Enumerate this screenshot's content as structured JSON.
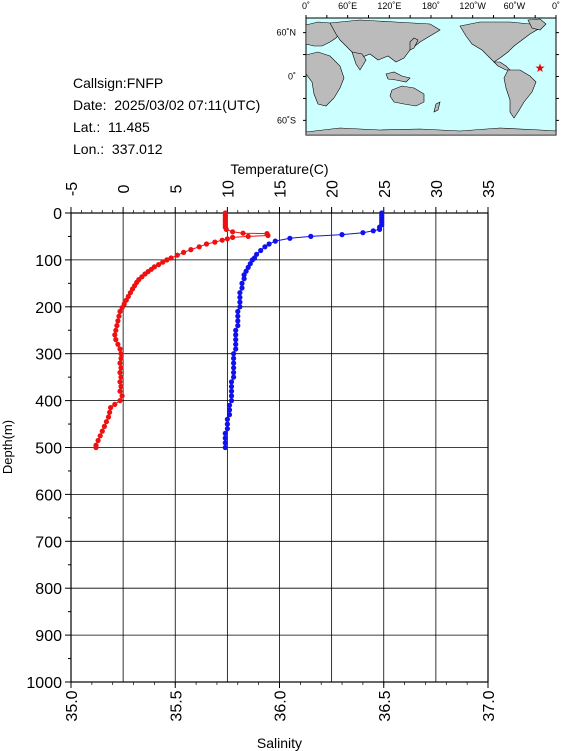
{
  "info": {
    "callsign": "Callsign:FNFP",
    "date": "Date:  2025/03/02 07:11(UTC)",
    "lat": "Lat.:  11.485",
    "lon": "Lon.:  337.012"
  },
  "map": {
    "lon_labels": [
      "0˚",
      "60˚E",
      "120˚E",
      "180˚",
      "120˚W",
      "60˚W",
      "0˚"
    ],
    "lat_labels": [
      "60˚N",
      "0˚",
      "60˚S"
    ],
    "ocean_color": "#ccffff",
    "land_color": "#bbbbbb",
    "marker": {
      "symbol": "★",
      "lon": 337.012,
      "lat": 11.485,
      "color": "#ee0000"
    }
  },
  "chart_data": {
    "type": "scatter",
    "title": "",
    "ylabel": "Depth(m)",
    "ylim": [
      0,
      1000
    ],
    "y_ticks": [
      "0",
      "100",
      "200",
      "300",
      "400",
      "500",
      "600",
      "700",
      "800",
      "900",
      "1000"
    ],
    "y_inverted": true,
    "grid": true,
    "x_top": {
      "label": "Temperature(C)",
      "range": [
        -5,
        35
      ],
      "ticks": [
        "-5",
        "0",
        "5",
        "10",
        "15",
        "20",
        "25",
        "30",
        "35"
      ]
    },
    "x_bottom": {
      "label": "Salinity",
      "range": [
        35.0,
        37.0
      ],
      "ticks": [
        "35.0",
        "35.5",
        "36.0",
        "36.5",
        "37.0"
      ]
    },
    "series": [
      {
        "variable": "temperature",
        "axis": "top",
        "color": "#ee1111",
        "points": [
          [
            9.8,
            0
          ],
          [
            9.8,
            5
          ],
          [
            9.8,
            10
          ],
          [
            9.8,
            15
          ],
          [
            9.8,
            20
          ],
          [
            9.8,
            25
          ],
          [
            9.8,
            30
          ],
          [
            9.9,
            35
          ],
          [
            10.5,
            40
          ],
          [
            11.5,
            43
          ],
          [
            13.8,
            44
          ],
          [
            13.9,
            48
          ],
          [
            12.0,
            50
          ],
          [
            10.5,
            52
          ],
          [
            10.0,
            55
          ],
          [
            9.5,
            58
          ],
          [
            8.8,
            62
          ],
          [
            8.0,
            66
          ],
          [
            7.3,
            72
          ],
          [
            6.5,
            78
          ],
          [
            5.8,
            84
          ],
          [
            5.2,
            90
          ],
          [
            4.6,
            96
          ],
          [
            4.2,
            100
          ],
          [
            3.8,
            105
          ],
          [
            3.4,
            110
          ],
          [
            3.0,
            115
          ],
          [
            2.7,
            120
          ],
          [
            2.4,
            125
          ],
          [
            2.1,
            130
          ],
          [
            1.8,
            136
          ],
          [
            1.5,
            142
          ],
          [
            1.3,
            148
          ],
          [
            1.1,
            155
          ],
          [
            0.9,
            162
          ],
          [
            0.7,
            170
          ],
          [
            0.5,
            178
          ],
          [
            0.3,
            186
          ],
          [
            0.1,
            194
          ],
          [
            -0.1,
            202
          ],
          [
            -0.3,
            210
          ],
          [
            -0.4,
            220
          ],
          [
            -0.5,
            230
          ],
          [
            -0.6,
            240
          ],
          [
            -0.7,
            250
          ],
          [
            -0.8,
            260
          ],
          [
            -0.7,
            270
          ],
          [
            -0.5,
            280
          ],
          [
            -0.3,
            290
          ],
          [
            -0.2,
            300
          ],
          [
            -0.2,
            310
          ],
          [
            -0.3,
            320
          ],
          [
            -0.2,
            330
          ],
          [
            -0.3,
            340
          ],
          [
            -0.2,
            350
          ],
          [
            -0.3,
            360
          ],
          [
            -0.2,
            370
          ],
          [
            -0.3,
            380
          ],
          [
            -0.1,
            390
          ],
          [
            -0.3,
            400
          ],
          [
            -0.8,
            408
          ],
          [
            -1.2,
            415
          ],
          [
            -1.3,
            425
          ],
          [
            -1.4,
            435
          ],
          [
            -1.6,
            445
          ],
          [
            -1.8,
            455
          ],
          [
            -2.0,
            465
          ],
          [
            -2.2,
            475
          ],
          [
            -2.4,
            485
          ],
          [
            -2.6,
            495
          ],
          [
            -2.6,
            500
          ]
        ]
      },
      {
        "variable": "salinity",
        "axis": "bottom",
        "color": "#1111ee",
        "points": [
          [
            36.49,
            0
          ],
          [
            36.49,
            5
          ],
          [
            36.49,
            10
          ],
          [
            36.49,
            15
          ],
          [
            36.49,
            20
          ],
          [
            36.49,
            25
          ],
          [
            36.48,
            30
          ],
          [
            36.48,
            35
          ],
          [
            36.45,
            38
          ],
          [
            36.4,
            42
          ],
          [
            36.3,
            46
          ],
          [
            36.15,
            50
          ],
          [
            36.05,
            54
          ],
          [
            35.98,
            60
          ],
          [
            35.95,
            66
          ],
          [
            35.93,
            72
          ],
          [
            35.91,
            80
          ],
          [
            35.89,
            88
          ],
          [
            35.88,
            96
          ],
          [
            35.87,
            100
          ],
          [
            35.86,
            108
          ],
          [
            35.85,
            116
          ],
          [
            35.84,
            124
          ],
          [
            35.83,
            132
          ],
          [
            35.83,
            140
          ],
          [
            35.82,
            150
          ],
          [
            35.82,
            160
          ],
          [
            35.81,
            170
          ],
          [
            35.81,
            180
          ],
          [
            35.81,
            190
          ],
          [
            35.81,
            200
          ],
          [
            35.8,
            210
          ],
          [
            35.8,
            220
          ],
          [
            35.8,
            230
          ],
          [
            35.8,
            240
          ],
          [
            35.79,
            250
          ],
          [
            35.79,
            260
          ],
          [
            35.79,
            270
          ],
          [
            35.79,
            280
          ],
          [
            35.79,
            290
          ],
          [
            35.78,
            300
          ],
          [
            35.78,
            310
          ],
          [
            35.78,
            320
          ],
          [
            35.78,
            330
          ],
          [
            35.78,
            340
          ],
          [
            35.78,
            350
          ],
          [
            35.77,
            360
          ],
          [
            35.77,
            370
          ],
          [
            35.77,
            380
          ],
          [
            35.77,
            390
          ],
          [
            35.77,
            400
          ],
          [
            35.76,
            410
          ],
          [
            35.76,
            420
          ],
          [
            35.76,
            430
          ],
          [
            35.75,
            440
          ],
          [
            35.75,
            450
          ],
          [
            35.75,
            460
          ],
          [
            35.74,
            470
          ],
          [
            35.74,
            480
          ],
          [
            35.74,
            490
          ],
          [
            35.74,
            500
          ]
        ]
      }
    ]
  }
}
